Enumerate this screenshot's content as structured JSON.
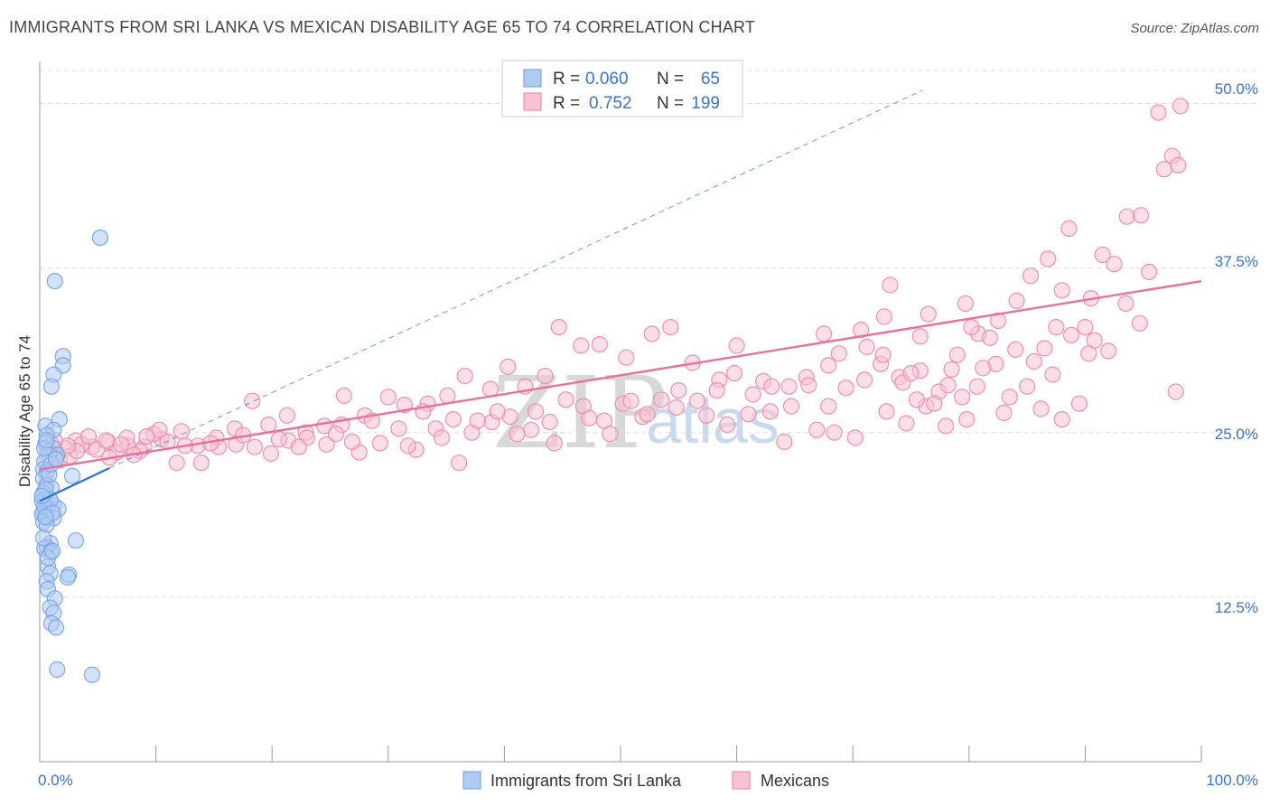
{
  "header": {
    "title": "IMMIGRANTS FROM SRI LANKA VS MEXICAN DISABILITY AGE 65 TO 74 CORRELATION CHART",
    "source": "Source: ZipAtlas.com"
  },
  "watermark": {
    "zip": "ZIP",
    "atlas": "atlas"
  },
  "colors": {
    "blue": "#7aa8e8",
    "blue_fill": "#aecbf2",
    "blue_line": "#2f6fcf",
    "pink": "#ee8fb0",
    "pink_fill": "#f7c2d3",
    "pink_line": "#e8709a",
    "tick_text": "#3a73c9",
    "grid": "#dddddd"
  },
  "legend": {
    "rows": [
      {
        "r_label": "R =",
        "r_value": "0.060",
        "n_label": "N =",
        "n_value": "65"
      },
      {
        "r_label": "R =",
        "r_value": "0.752",
        "n_label": "N =",
        "n_value": "199"
      }
    ]
  },
  "chart_data": {
    "type": "scatter",
    "title": "IMMIGRANTS FROM SRI LANKA VS MEXICAN DISABILITY AGE 65 TO 74 CORRELATION CHART",
    "xlabel": "",
    "ylabel": "Disability Age 65 to 74",
    "xlim": [
      0,
      100
    ],
    "ylim": [
      0,
      52.5
    ],
    "x_tick_labels": [
      "0.0%",
      "100.0%"
    ],
    "y_ticks": [
      12.5,
      25.0,
      37.5,
      50.0
    ],
    "y_tick_labels": [
      "12.5%",
      "25.0%",
      "37.5%",
      "50.0%"
    ],
    "grid": true,
    "series": [
      {
        "name": "Immigrants from Sri Lanka",
        "color": "blue",
        "points": [
          [
            5.2,
            39.8
          ],
          [
            1.3,
            36.5
          ],
          [
            2.0,
            30.8
          ],
          [
            2.0,
            30.1
          ],
          [
            1.2,
            29.4
          ],
          [
            1.0,
            28.5
          ],
          [
            1.7,
            26.0
          ],
          [
            0.5,
            25.5
          ],
          [
            1.2,
            25.2
          ],
          [
            0.6,
            24.8
          ],
          [
            0.5,
            24.2
          ],
          [
            1.2,
            23.8
          ],
          [
            1.5,
            23.3
          ],
          [
            0.8,
            23.3
          ],
          [
            0.4,
            22.8
          ],
          [
            0.3,
            22.2
          ],
          [
            0.6,
            22.0
          ],
          [
            2.8,
            21.7
          ],
          [
            0.3,
            21.5
          ],
          [
            0.6,
            21.0
          ],
          [
            1.0,
            20.8
          ],
          [
            0.3,
            20.4
          ],
          [
            0.5,
            20.0
          ],
          [
            0.2,
            19.8
          ],
          [
            0.7,
            19.5
          ],
          [
            1.2,
            19.5
          ],
          [
            1.6,
            19.2
          ],
          [
            0.3,
            19.0
          ],
          [
            0.2,
            18.8
          ],
          [
            0.6,
            18.5
          ],
          [
            1.2,
            18.5
          ],
          [
            0.3,
            18.2
          ],
          [
            0.6,
            18.0
          ],
          [
            3.1,
            16.8
          ],
          [
            0.9,
            16.6
          ],
          [
            0.6,
            16.3
          ],
          [
            0.4,
            16.2
          ],
          [
            0.9,
            15.9
          ],
          [
            0.7,
            14.8
          ],
          [
            0.9,
            14.3
          ],
          [
            2.5,
            14.2
          ],
          [
            2.4,
            14.0
          ],
          [
            0.6,
            13.7
          ],
          [
            0.7,
            13.1
          ],
          [
            1.3,
            12.4
          ],
          [
            0.9,
            11.7
          ],
          [
            1.2,
            11.3
          ],
          [
            1.0,
            10.5
          ],
          [
            1.4,
            10.2
          ],
          [
            1.5,
            7.0
          ],
          [
            4.5,
            6.6
          ],
          [
            0.4,
            23.8
          ],
          [
            0.8,
            21.8
          ],
          [
            0.5,
            20.7
          ],
          [
            0.9,
            19.9
          ],
          [
            0.4,
            19.4
          ],
          [
            1.1,
            18.9
          ],
          [
            0.3,
            17.0
          ],
          [
            0.7,
            15.5
          ],
          [
            1.0,
            22.6
          ],
          [
            0.6,
            24.4
          ],
          [
            1.4,
            23.0
          ],
          [
            0.2,
            20.2
          ],
          [
            0.5,
            18.6
          ],
          [
            1.1,
            16.0
          ]
        ]
      },
      {
        "name": "Mexicans",
        "color": "pink",
        "points": [
          [
            98.2,
            49.8
          ],
          [
            96.3,
            49.3
          ],
          [
            96.8,
            45.0
          ],
          [
            97.5,
            46.0
          ],
          [
            98.0,
            45.3
          ],
          [
            93.6,
            41.4
          ],
          [
            94.8,
            41.5
          ],
          [
            91.5,
            38.5
          ],
          [
            92.5,
            37.8
          ],
          [
            95.5,
            37.2
          ],
          [
            88.6,
            40.5
          ],
          [
            86.8,
            38.2
          ],
          [
            85.3,
            36.9
          ],
          [
            88.0,
            35.8
          ],
          [
            90.5,
            35.2
          ],
          [
            93.5,
            34.8
          ],
          [
            94.7,
            33.3
          ],
          [
            87.5,
            33.0
          ],
          [
            90.0,
            33.0
          ],
          [
            90.8,
            32.0
          ],
          [
            92.0,
            31.2
          ],
          [
            84.1,
            35.0
          ],
          [
            82.5,
            33.5
          ],
          [
            80.8,
            32.5
          ],
          [
            81.8,
            32.2
          ],
          [
            79.7,
            34.8
          ],
          [
            76.5,
            34.0
          ],
          [
            75.8,
            32.3
          ],
          [
            78.5,
            29.8
          ],
          [
            80.2,
            33.0
          ],
          [
            73.2,
            36.2
          ],
          [
            72.7,
            33.8
          ],
          [
            70.7,
            32.8
          ],
          [
            68.8,
            31.0
          ],
          [
            67.5,
            32.5
          ],
          [
            74.6,
            25.7
          ],
          [
            76.3,
            27.0
          ],
          [
            78.0,
            25.5
          ],
          [
            79.8,
            26.0
          ],
          [
            83.0,
            26.5
          ],
          [
            86.2,
            26.8
          ],
          [
            88.0,
            26.0
          ],
          [
            89.5,
            27.2
          ],
          [
            97.8,
            28.1
          ],
          [
            71.2,
            31.5
          ],
          [
            72.4,
            30.2
          ],
          [
            74.0,
            29.2
          ],
          [
            75.5,
            27.5
          ],
          [
            67.9,
            30.1
          ],
          [
            66.0,
            29.2
          ],
          [
            64.5,
            28.5
          ],
          [
            62.3,
            28.9
          ],
          [
            60.0,
            31.6
          ],
          [
            58.5,
            29.0
          ],
          [
            56.2,
            30.3
          ],
          [
            54.3,
            33.0
          ],
          [
            52.7,
            32.5
          ],
          [
            50.5,
            30.7
          ],
          [
            48.2,
            31.7
          ],
          [
            46.6,
            31.6
          ],
          [
            44.7,
            33.0
          ],
          [
            43.5,
            29.3
          ],
          [
            41.8,
            28.5
          ],
          [
            40.3,
            30.0
          ],
          [
            38.8,
            28.3
          ],
          [
            36.6,
            29.3
          ],
          [
            35.1,
            27.8
          ],
          [
            33.4,
            27.2
          ],
          [
            31.4,
            27.1
          ],
          [
            30.0,
            27.7
          ],
          [
            28.0,
            26.3
          ],
          [
            26.2,
            27.8
          ],
          [
            24.5,
            25.5
          ],
          [
            22.9,
            25.0
          ],
          [
            21.3,
            26.3
          ],
          [
            19.7,
            25.6
          ],
          [
            18.3,
            27.4
          ],
          [
            16.8,
            25.3
          ],
          [
            15.2,
            24.6
          ],
          [
            13.6,
            24.0
          ],
          [
            12.2,
            25.1
          ],
          [
            10.5,
            24.5
          ],
          [
            9.0,
            23.9
          ],
          [
            7.6,
            24.0
          ],
          [
            5.9,
            24.3
          ],
          [
            4.5,
            23.9
          ],
          [
            3.1,
            24.4
          ],
          [
            2.2,
            23.8
          ],
          [
            1.5,
            23.4
          ],
          [
            1.0,
            24.1
          ],
          [
            0.8,
            23.6
          ],
          [
            1.7,
            22.9
          ],
          [
            2.6,
            23.2
          ],
          [
            3.6,
            24.1
          ],
          [
            4.9,
            23.7
          ],
          [
            5.7,
            24.4
          ],
          [
            6.6,
            23.5
          ],
          [
            7.5,
            24.6
          ],
          [
            8.6,
            23.6
          ],
          [
            9.8,
            24.9
          ],
          [
            11.0,
            24.3
          ],
          [
            12.5,
            24.0
          ],
          [
            13.9,
            22.7
          ],
          [
            15.4,
            23.9
          ],
          [
            16.9,
            24.1
          ],
          [
            18.5,
            23.9
          ],
          [
            19.9,
            23.4
          ],
          [
            21.4,
            24.4
          ],
          [
            23.0,
            24.6
          ],
          [
            24.7,
            24.1
          ],
          [
            26.0,
            25.6
          ],
          [
            27.5,
            23.5
          ],
          [
            29.3,
            24.2
          ],
          [
            30.9,
            25.3
          ],
          [
            32.4,
            23.7
          ],
          [
            34.1,
            25.3
          ],
          [
            35.6,
            26.0
          ],
          [
            37.2,
            25.0
          ],
          [
            38.9,
            25.8
          ],
          [
            40.5,
            26.2
          ],
          [
            42.3,
            25.2
          ],
          [
            43.9,
            25.8
          ],
          [
            45.3,
            27.5
          ],
          [
            46.8,
            27.0
          ],
          [
            48.6,
            25.9
          ],
          [
            50.2,
            27.2
          ],
          [
            51.9,
            26.2
          ],
          [
            53.5,
            27.5
          ],
          [
            55.0,
            28.2
          ],
          [
            56.6,
            27.4
          ],
          [
            58.3,
            28.2
          ],
          [
            59.8,
            29.5
          ],
          [
            61.4,
            27.9
          ],
          [
            63.0,
            28.5
          ],
          [
            64.7,
            27.0
          ],
          [
            66.2,
            28.6
          ],
          [
            67.9,
            27.0
          ],
          [
            69.4,
            28.4
          ],
          [
            71.0,
            29.0
          ],
          [
            72.6,
            30.9
          ],
          [
            74.3,
            28.8
          ],
          [
            75.8,
            29.7
          ],
          [
            77.4,
            28.1
          ],
          [
            79.0,
            30.9
          ],
          [
            80.7,
            28.5
          ],
          [
            82.3,
            30.2
          ],
          [
            84.0,
            31.3
          ],
          [
            85.6,
            30.4
          ],
          [
            87.2,
            29.4
          ],
          [
            88.8,
            32.4
          ],
          [
            90.3,
            31.0
          ],
          [
            7.0,
            24.1
          ],
          [
            4.2,
            24.7
          ],
          [
            3.2,
            23.6
          ],
          [
            2.4,
            24.0
          ],
          [
            1.3,
            24.4
          ],
          [
            6.0,
            23.1
          ],
          [
            11.8,
            22.7
          ],
          [
            10.3,
            25.2
          ],
          [
            9.2,
            24.7
          ],
          [
            8.1,
            23.3
          ],
          [
            14.7,
            24.2
          ],
          [
            17.5,
            24.8
          ],
          [
            20.6,
            24.5
          ],
          [
            22.3,
            23.9
          ],
          [
            25.5,
            24.9
          ],
          [
            26.9,
            24.3
          ],
          [
            28.6,
            25.9
          ],
          [
            31.7,
            24.0
          ],
          [
            33.0,
            26.6
          ],
          [
            34.6,
            24.6
          ],
          [
            36.1,
            22.7
          ],
          [
            37.7,
            25.9
          ],
          [
            39.4,
            26.6
          ],
          [
            41.1,
            24.9
          ],
          [
            42.7,
            26.6
          ],
          [
            44.3,
            24.2
          ],
          [
            47.3,
            26.1
          ],
          [
            49.1,
            24.9
          ],
          [
            50.9,
            27.4
          ],
          [
            52.3,
            26.4
          ],
          [
            54.8,
            26.9
          ],
          [
            57.4,
            26.3
          ],
          [
            59.2,
            25.6
          ],
          [
            61.0,
            26.4
          ],
          [
            62.9,
            26.6
          ],
          [
            64.1,
            24.3
          ],
          [
            66.9,
            25.2
          ],
          [
            68.4,
            25.0
          ],
          [
            70.2,
            24.6
          ],
          [
            72.9,
            26.6
          ],
          [
            75.0,
            29.5
          ],
          [
            77.0,
            27.2
          ],
          [
            78.2,
            28.6
          ],
          [
            79.4,
            27.7
          ],
          [
            81.2,
            29.9
          ],
          [
            83.5,
            27.7
          ],
          [
            85.0,
            28.5
          ],
          [
            86.5,
            31.4
          ]
        ]
      }
    ],
    "trend_lines": [
      {
        "series": "Immigrants from Sri Lanka",
        "x": [
          0,
          6
        ],
        "y": [
          19.8,
          22.3
        ]
      },
      {
        "series": "Immigrants from Sri Lanka (extrapolated)",
        "x": [
          6,
          76
        ],
        "y": [
          22.3,
          51.0
        ]
      },
      {
        "series": "Mexicans",
        "x": [
          0,
          100
        ],
        "y": [
          22.2,
          36.5
        ]
      }
    ]
  },
  "bottom_legend": [
    {
      "label": "Immigrants from Sri Lanka",
      "color": "blue"
    },
    {
      "label": "Mexicans",
      "color": "pink"
    }
  ]
}
